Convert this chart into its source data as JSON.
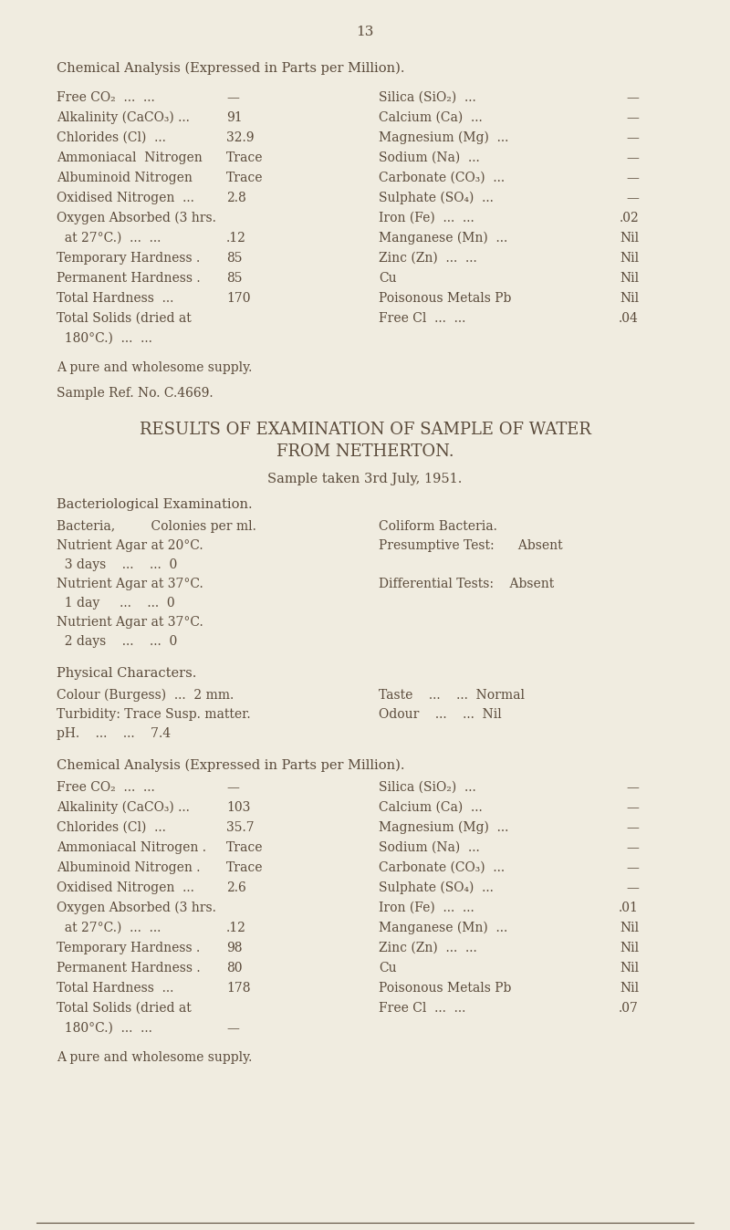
{
  "bg_color": "#f0ece0",
  "text_color": "#5a4a3a",
  "page_number": "13",
  "section1_header": "Chemical Analysis (Expressed in Parts per Million).",
  "pure_supply_1": "A pure and wholesome supply.",
  "sample_ref": "Sample Ref. No. C.4669.",
  "main_title_1": "RESULTS OF EXAMINATION OF SAMPLE OF WATER",
  "main_title_2": "FROM NETHERTON.",
  "sample_taken": "Sample taken 3rd July, 1951.",
  "bact_header": "Bacteriological Examination.",
  "phys_header": "Physical Characters.",
  "section2_header": "Chemical Analysis (Expressed in Parts per Million).",
  "pure_supply_2": "A pure and wholesome supply.",
  "figw": 8.0,
  "figh": 13.48,
  "dpi": 100
}
